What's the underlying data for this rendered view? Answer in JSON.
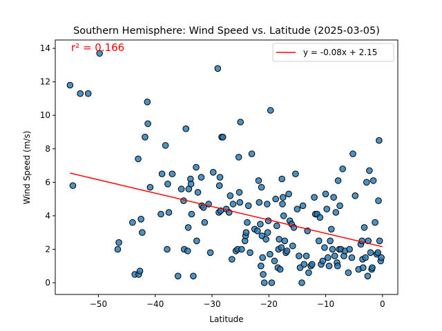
{
  "chart_data": {
    "type": "scatter",
    "title": "Southern Hemisphere: Wind Speed vs. Latitude (2025-03-05)",
    "xlabel": "Latitude",
    "ylabel": "Wind Speed (m/s)",
    "xlim": [
      -57.6,
      2.7
    ],
    "ylim": [
      -0.7,
      14.5
    ],
    "xticks": [
      -50,
      -40,
      -30,
      -20,
      -10,
      0
    ],
    "xtick_labels": [
      "−50",
      "−40",
      "−30",
      "−20",
      "−10",
      "0"
    ],
    "yticks": [
      0,
      2,
      4,
      6,
      8,
      10,
      12,
      14
    ],
    "ytick_labels": [
      "0",
      "2",
      "4",
      "6",
      "8",
      "10",
      "12",
      "14"
    ],
    "grid": false,
    "legend_position": "top-right",
    "annotation": {
      "text": "r² = 0.166",
      "color": "#ff0000",
      "position": "top-left"
    },
    "marker_color": "#1f77b4",
    "regression": {
      "label": "y = -0.08x + 2.15",
      "slope": -0.08,
      "intercept": 2.15,
      "x_range": [
        -55,
        0
      ],
      "color": "#ff0000"
    },
    "points": [
      [
        -55,
        11.8
      ],
      [
        -54.5,
        5.8
      ],
      [
        -53.2,
        11.3
      ],
      [
        -51.8,
        11.3
      ],
      [
        -49.8,
        13.7
      ],
      [
        -46.6,
        2.0
      ],
      [
        -46.4,
        2.4
      ],
      [
        -44,
        3.6
      ],
      [
        -43.6,
        0.5
      ],
      [
        -43,
        7.4
      ],
      [
        -42.9,
        0.5
      ],
      [
        -42.7,
        0.7
      ],
      [
        -42.5,
        3.8
      ],
      [
        -42.3,
        3.0
      ],
      [
        -41.8,
        8.7
      ],
      [
        -41.4,
        10.8
      ],
      [
        -41.3,
        9.5
      ],
      [
        -40.9,
        5.7
      ],
      [
        -39,
        4.1
      ],
      [
        -38.8,
        6.5
      ],
      [
        -38.2,
        8.2
      ],
      [
        -37.9,
        2.0
      ],
      [
        -37.6,
        4.2
      ],
      [
        -37.8,
        5.9
      ],
      [
        -37,
        6.5
      ],
      [
        -36,
        0.4
      ],
      [
        -35.4,
        5.6
      ],
      [
        -35,
        4.9
      ],
      [
        -34.9,
        2.0
      ],
      [
        -34.6,
        9.2
      ],
      [
        -34.3,
        1.9
      ],
      [
        -34.2,
        3.3
      ],
      [
        -34.1,
        5.6
      ],
      [
        -33.8,
        6.2
      ],
      [
        -33.7,
        5.9
      ],
      [
        -33.6,
        4.1
      ],
      [
        -33.3,
        0.4
      ],
      [
        -32.8,
        6.9
      ],
      [
        -32.7,
        2.5
      ],
      [
        -32.5,
        5.4
      ],
      [
        -31.9,
        6.3
      ],
      [
        -31.8,
        4.6
      ],
      [
        -31.5,
        4.5
      ],
      [
        -31.3,
        3.6
      ],
      [
        -30.6,
        4.7
      ],
      [
        -30.3,
        1.8
      ],
      [
        -29.8,
        6.6
      ],
      [
        -29,
        12.8
      ],
      [
        -28.8,
        4.2
      ],
      [
        -28.7,
        5.8
      ],
      [
        -28.6,
        6.3
      ],
      [
        -28.5,
        4.3
      ],
      [
        -28.3,
        8.7
      ],
      [
        -28.1,
        8.7
      ],
      [
        -27.5,
        4.4
      ],
      [
        -27,
        4.2
      ],
      [
        -26.8,
        5.2
      ],
      [
        -26.5,
        1.4
      ],
      [
        -26.3,
        4.7
      ],
      [
        -25.8,
        1.9
      ],
      [
        -25.5,
        2.0
      ],
      [
        -25.3,
        7.5
      ],
      [
        -25.2,
        5.4
      ],
      [
        -25.1,
        4.8
      ],
      [
        -25,
        9.6
      ],
      [
        -24.8,
        2.0
      ],
      [
        -24.2,
        2.5
      ],
      [
        -24.1,
        2.8
      ],
      [
        -24,
        3.0
      ],
      [
        -23.8,
        3.6
      ],
      [
        -23.6,
        4.6
      ],
      [
        -23.3,
        1.8
      ],
      [
        -23,
        7.7
      ],
      [
        -22.5,
        3.2
      ],
      [
        -22,
        3.1
      ],
      [
        -21.8,
        6.1
      ],
      [
        -21.7,
        4.8
      ],
      [
        -21.5,
        3.5
      ],
      [
        -21.4,
        1.0
      ],
      [
        -21.3,
        5.7
      ],
      [
        -21.2,
        2.8
      ],
      [
        -21.1,
        1.5
      ],
      [
        -21,
        0.5
      ],
      [
        -20.8,
        0
      ],
      [
        -20.5,
        2.6
      ],
      [
        -20.3,
        4.7
      ],
      [
        -20.2,
        3.0
      ],
      [
        -20.1,
        3.7
      ],
      [
        -19.8,
        1.7
      ],
      [
        -19.7,
        10.3
      ],
      [
        -19.5,
        0
      ],
      [
        -19,
        1.3
      ],
      [
        -18.8,
        5.0
      ],
      [
        -18.6,
        3.4
      ],
      [
        -18.4,
        0.9
      ],
      [
        -18.3,
        2.0
      ],
      [
        -18.2,
        2.6
      ],
      [
        -18,
        0.8
      ],
      [
        -17.8,
        2.1
      ],
      [
        -17.7,
        6.2
      ],
      [
        -17.6,
        4.7
      ],
      [
        -17.5,
        5.1
      ],
      [
        -17.4,
        4.0
      ],
      [
        -17.2,
        2.5
      ],
      [
        -17,
        1.8
      ],
      [
        -16.8,
        1.9
      ],
      [
        -16.5,
        5.3
      ],
      [
        -16.3,
        3.7
      ],
      [
        -16,
        3.5
      ],
      [
        -15.8,
        2.2
      ],
      [
        -15.6,
        3.3
      ],
      [
        -15.3,
        6.5
      ],
      [
        -15,
        4.4
      ],
      [
        -14.7,
        1.6
      ],
      [
        -14.5,
        0.9
      ],
      [
        -14.2,
        0
      ],
      [
        -14,
        4.6
      ],
      [
        -13.8,
        1.1
      ],
      [
        -13.4,
        1.6
      ],
      [
        -13.2,
        3.1
      ],
      [
        -13,
        0.6
      ],
      [
        -12.6,
        1.0
      ],
      [
        -12.4,
        1.1
      ],
      [
        -12,
        5.1
      ],
      [
        -11.8,
        4.1
      ],
      [
        -11.5,
        4.1
      ],
      [
        -11.2,
        2.5
      ],
      [
        -11,
        3.9
      ],
      [
        -10.8,
        1.1
      ],
      [
        -10.5,
        1.3
      ],
      [
        -10.2,
        2.1
      ],
      [
        -10,
        5.3
      ],
      [
        -9.8,
        4.4
      ],
      [
        -9.6,
        1.5
      ],
      [
        -9.4,
        1.0
      ],
      [
        -9.2,
        2.5
      ],
      [
        -9,
        3.2
      ],
      [
        -8.8,
        2.0
      ],
      [
        -8.6,
        5.1
      ],
      [
        -8.4,
        1.6
      ],
      [
        -8.2,
        4.2
      ],
      [
        -8,
        1.2
      ],
      [
        -7.9,
        1.0
      ],
      [
        -7.8,
        6.1
      ],
      [
        -7.6,
        2.0
      ],
      [
        -7.5,
        4.6
      ],
      [
        -7.3,
        2.0
      ],
      [
        -7,
        6.8
      ],
      [
        -6.8,
        1.6
      ],
      [
        -6.6,
        1.9
      ],
      [
        -6,
        0.6
      ],
      [
        -5.8,
        2.0
      ],
      [
        -5.4,
        1.5
      ],
      [
        -5.2,
        7.7
      ],
      [
        -4.8,
        5.2
      ],
      [
        -4.2,
        0.8
      ],
      [
        -3.8,
        2.3
      ],
      [
        -3.6,
        2.5
      ],
      [
        -3.5,
        1.4
      ],
      [
        -3.4,
        0.9
      ],
      [
        -3.2,
        3.3
      ],
      [
        -3,
        1.5
      ],
      [
        -2.8,
        6.0
      ],
      [
        -2.6,
        0.4
      ],
      [
        -2.5,
        2.5
      ],
      [
        -2.3,
        6.7
      ],
      [
        -2.1,
        1.8
      ],
      [
        -1.9,
        0.8
      ],
      [
        -1.8,
        0.9
      ],
      [
        -1.6,
        6.1
      ],
      [
        -1.3,
        3.6
      ],
      [
        -1,
        1.7
      ],
      [
        -0.8,
        1.8
      ],
      [
        -0.7,
        4.9
      ],
      [
        -0.6,
        8.5
      ],
      [
        -0.5,
        2.5
      ],
      [
        -0.3,
        1.3
      ],
      [
        -0.2,
        1.5
      ]
    ]
  }
}
